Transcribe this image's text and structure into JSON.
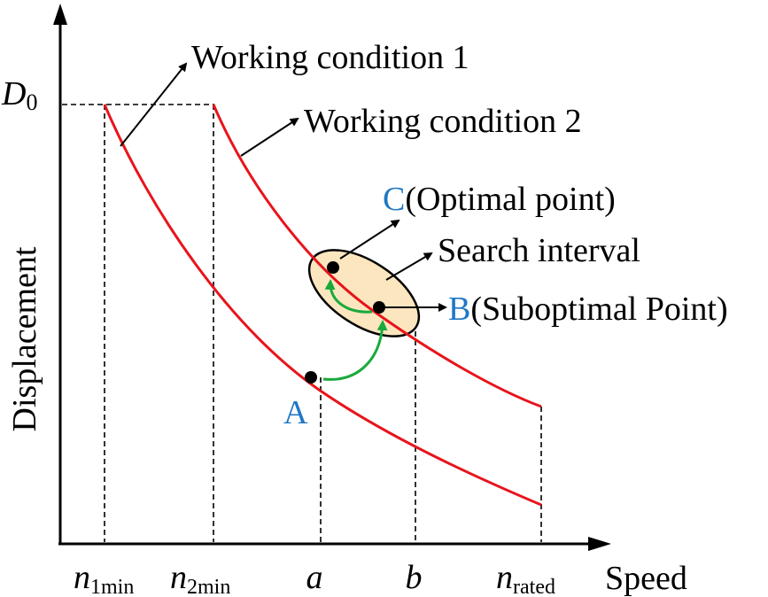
{
  "axes": {
    "y_label": "Displacement",
    "x_label": "Speed",
    "d0_main": "D",
    "d0_sub": "0"
  },
  "ticks": [
    {
      "main": "n",
      "sub": "1min"
    },
    {
      "main": "n",
      "sub": "2min"
    },
    {
      "main": "a",
      "sub": ""
    },
    {
      "main": "b",
      "sub": ""
    },
    {
      "main": "n",
      "sub": "rated"
    }
  ],
  "curves": {
    "condition1": "Working condition 1",
    "condition2": "Working condition 2"
  },
  "search_interval": "Search interval",
  "points": {
    "a": {
      "letter": "A",
      "desc": ""
    },
    "b": {
      "letter": "B",
      "desc": "(Suboptimal Point)"
    },
    "c": {
      "letter": "C",
      "desc": "(Optimal point)"
    }
  },
  "colors": {
    "curve": "#e8141b",
    "letter": "#1f77c4",
    "move_arrow": "#1aaa3c",
    "interval_fill": "#fbe6bf",
    "axis": "#000000"
  }
}
